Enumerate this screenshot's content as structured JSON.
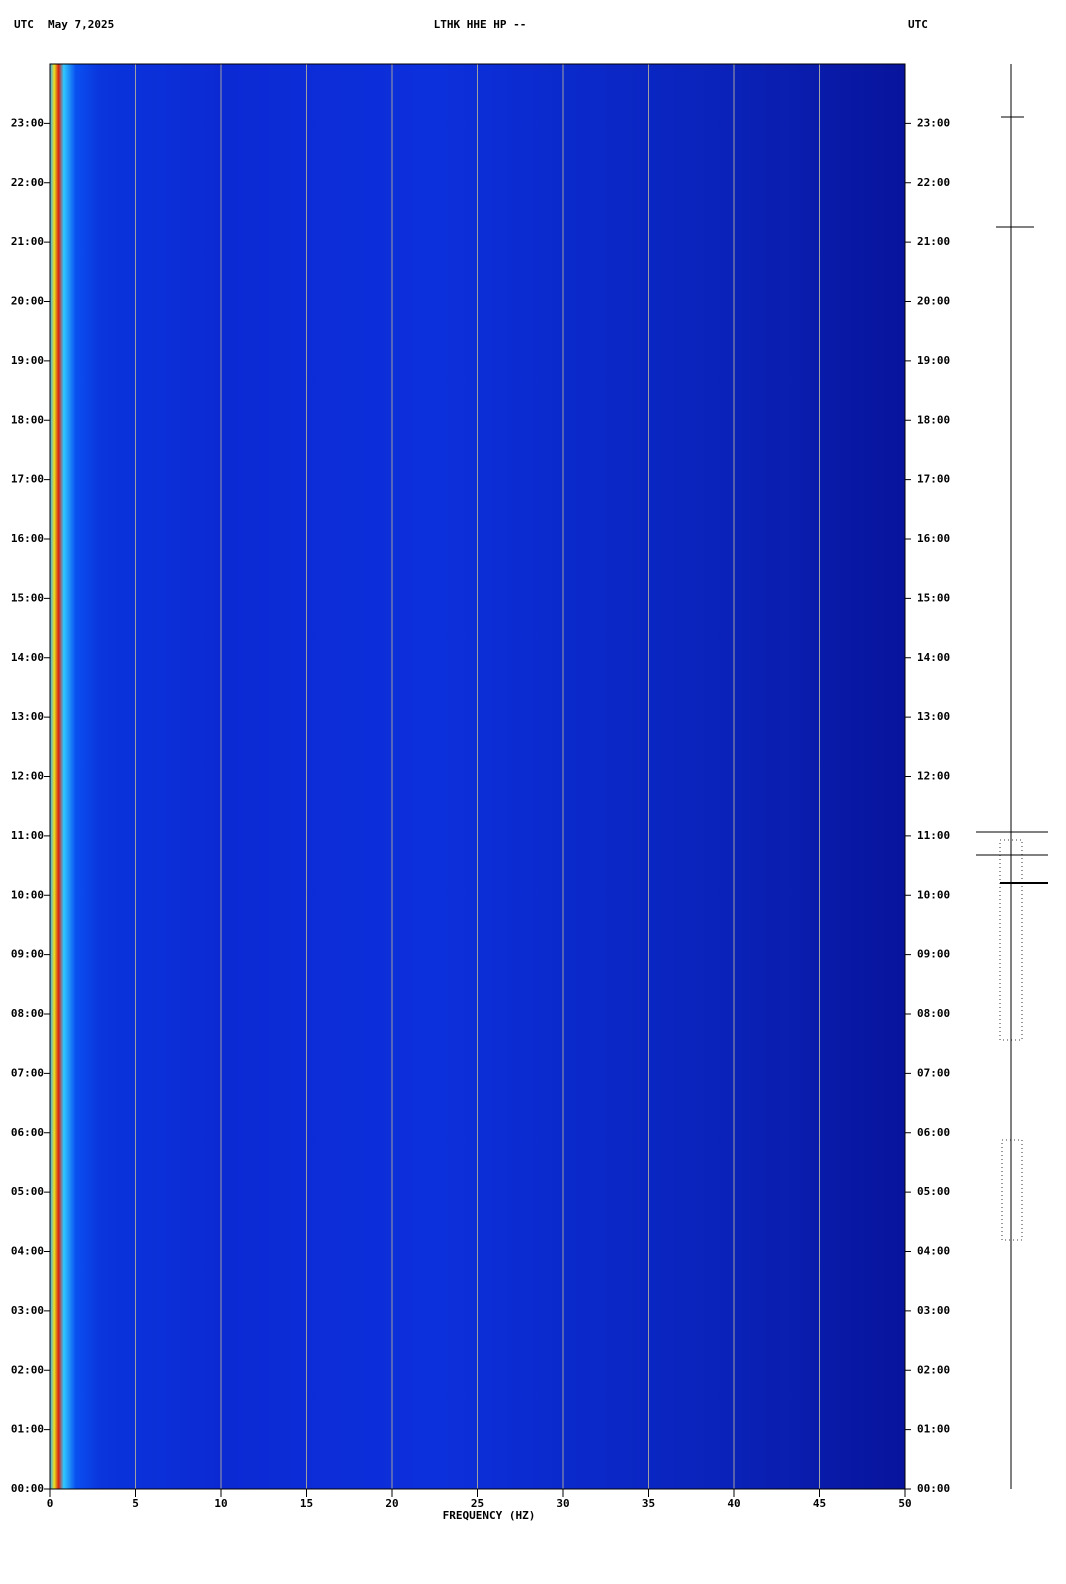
{
  "chart_data": {
    "type": "spectrogram",
    "header_left": "UTC",
    "date": "May 7,2025",
    "title": "LTHK HHE HP --",
    "header_right": "UTC",
    "xlabel": "FREQUENCY (HZ)",
    "xlim": [
      0,
      50
    ],
    "xticks": [
      0,
      5,
      10,
      15,
      20,
      25,
      30,
      35,
      40,
      45,
      50
    ],
    "ylim": [
      0,
      24
    ],
    "yticks": [
      {
        "value": 0,
        "label": "00:00"
      },
      {
        "value": 1,
        "label": "01:00"
      },
      {
        "value": 2,
        "label": "02:00"
      },
      {
        "value": 3,
        "label": "03:00"
      },
      {
        "value": 4,
        "label": "04:00"
      },
      {
        "value": 5,
        "label": "05:00"
      },
      {
        "value": 6,
        "label": "06:00"
      },
      {
        "value": 7,
        "label": "07:00"
      },
      {
        "value": 8,
        "label": "08:00"
      },
      {
        "value": 9,
        "label": "09:00"
      },
      {
        "value": 10,
        "label": "10:00"
      },
      {
        "value": 11,
        "label": "11:00"
      },
      {
        "value": 12,
        "label": "12:00"
      },
      {
        "value": 13,
        "label": "13:00"
      },
      {
        "value": 14,
        "label": "14:00"
      },
      {
        "value": 15,
        "label": "15:00"
      },
      {
        "value": 16,
        "label": "16:00"
      },
      {
        "value": 17,
        "label": "17:00"
      },
      {
        "value": 18,
        "label": "18:00"
      },
      {
        "value": 19,
        "label": "19:00"
      },
      {
        "value": 20,
        "label": "20:00"
      },
      {
        "value": 21,
        "label": "21:00"
      },
      {
        "value": 22,
        "label": "22:00"
      },
      {
        "value": 23,
        "label": "23:00"
      }
    ],
    "grid": true,
    "grid_color": "#a0a0a0"
  }
}
